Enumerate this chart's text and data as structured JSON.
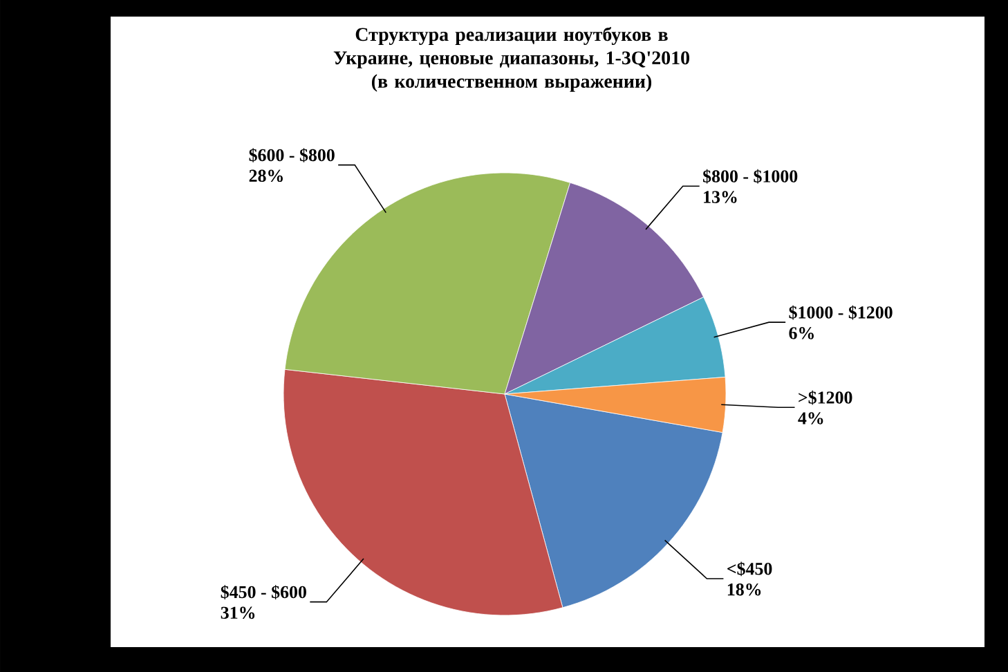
{
  "chart_data": {
    "type": "pie",
    "title": "Структура реализации ноутбуков в Украине, ценовые диапазоны, 1-3Q'2010",
    "subtitle": "(в количественном выражении)",
    "categories": [
      "<$450",
      "$450 - $600",
      "$600 - $800",
      "$800 - $1000",
      "$1000 - $1200",
      ">$1200"
    ],
    "values": [
      18,
      31,
      28,
      13,
      6,
      4
    ],
    "value_labels": [
      "18%",
      "31%",
      "28%",
      "13%",
      "6%",
      "4%"
    ],
    "colors": [
      "#4f81bd",
      "#c0504d",
      "#9bbb59",
      "#8064a2",
      "#4bacc6",
      "#f79646"
    ]
  }
}
